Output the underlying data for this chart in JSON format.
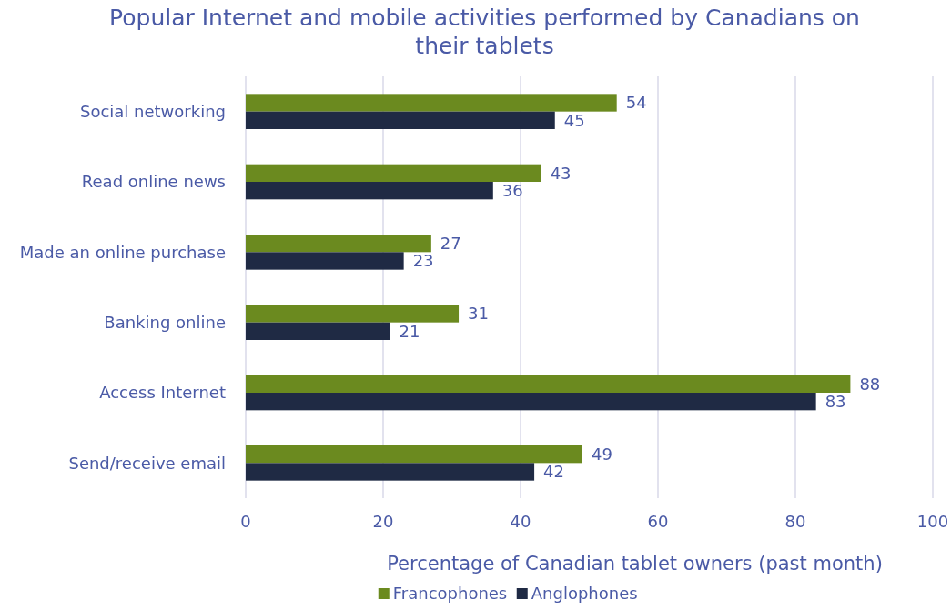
{
  "chart_data": {
    "type": "bar",
    "orientation": "horizontal",
    "title": "Popular Internet and mobile activities performed by Canadians on their tablets",
    "xlabel": "Percentage of Canadian tablet owners (past month)",
    "categories": [
      "Social networking",
      "Read online news",
      "Made an online purchase",
      "Banking online",
      "Access Internet",
      "Send/receive email"
    ],
    "series": [
      {
        "name": "Francophones",
        "color": "#6b8a1f",
        "values": [
          54,
          43,
          27,
          31,
          88,
          49
        ]
      },
      {
        "name": "Anglophones",
        "color": "#1f2a44",
        "values": [
          45,
          36,
          23,
          21,
          83,
          42
        ]
      }
    ],
    "xlim": [
      0,
      100
    ],
    "xticks": [
      0,
      20,
      40,
      60,
      80,
      100
    ],
    "grid": "x",
    "legend": "bottom",
    "data_labels": true
  }
}
